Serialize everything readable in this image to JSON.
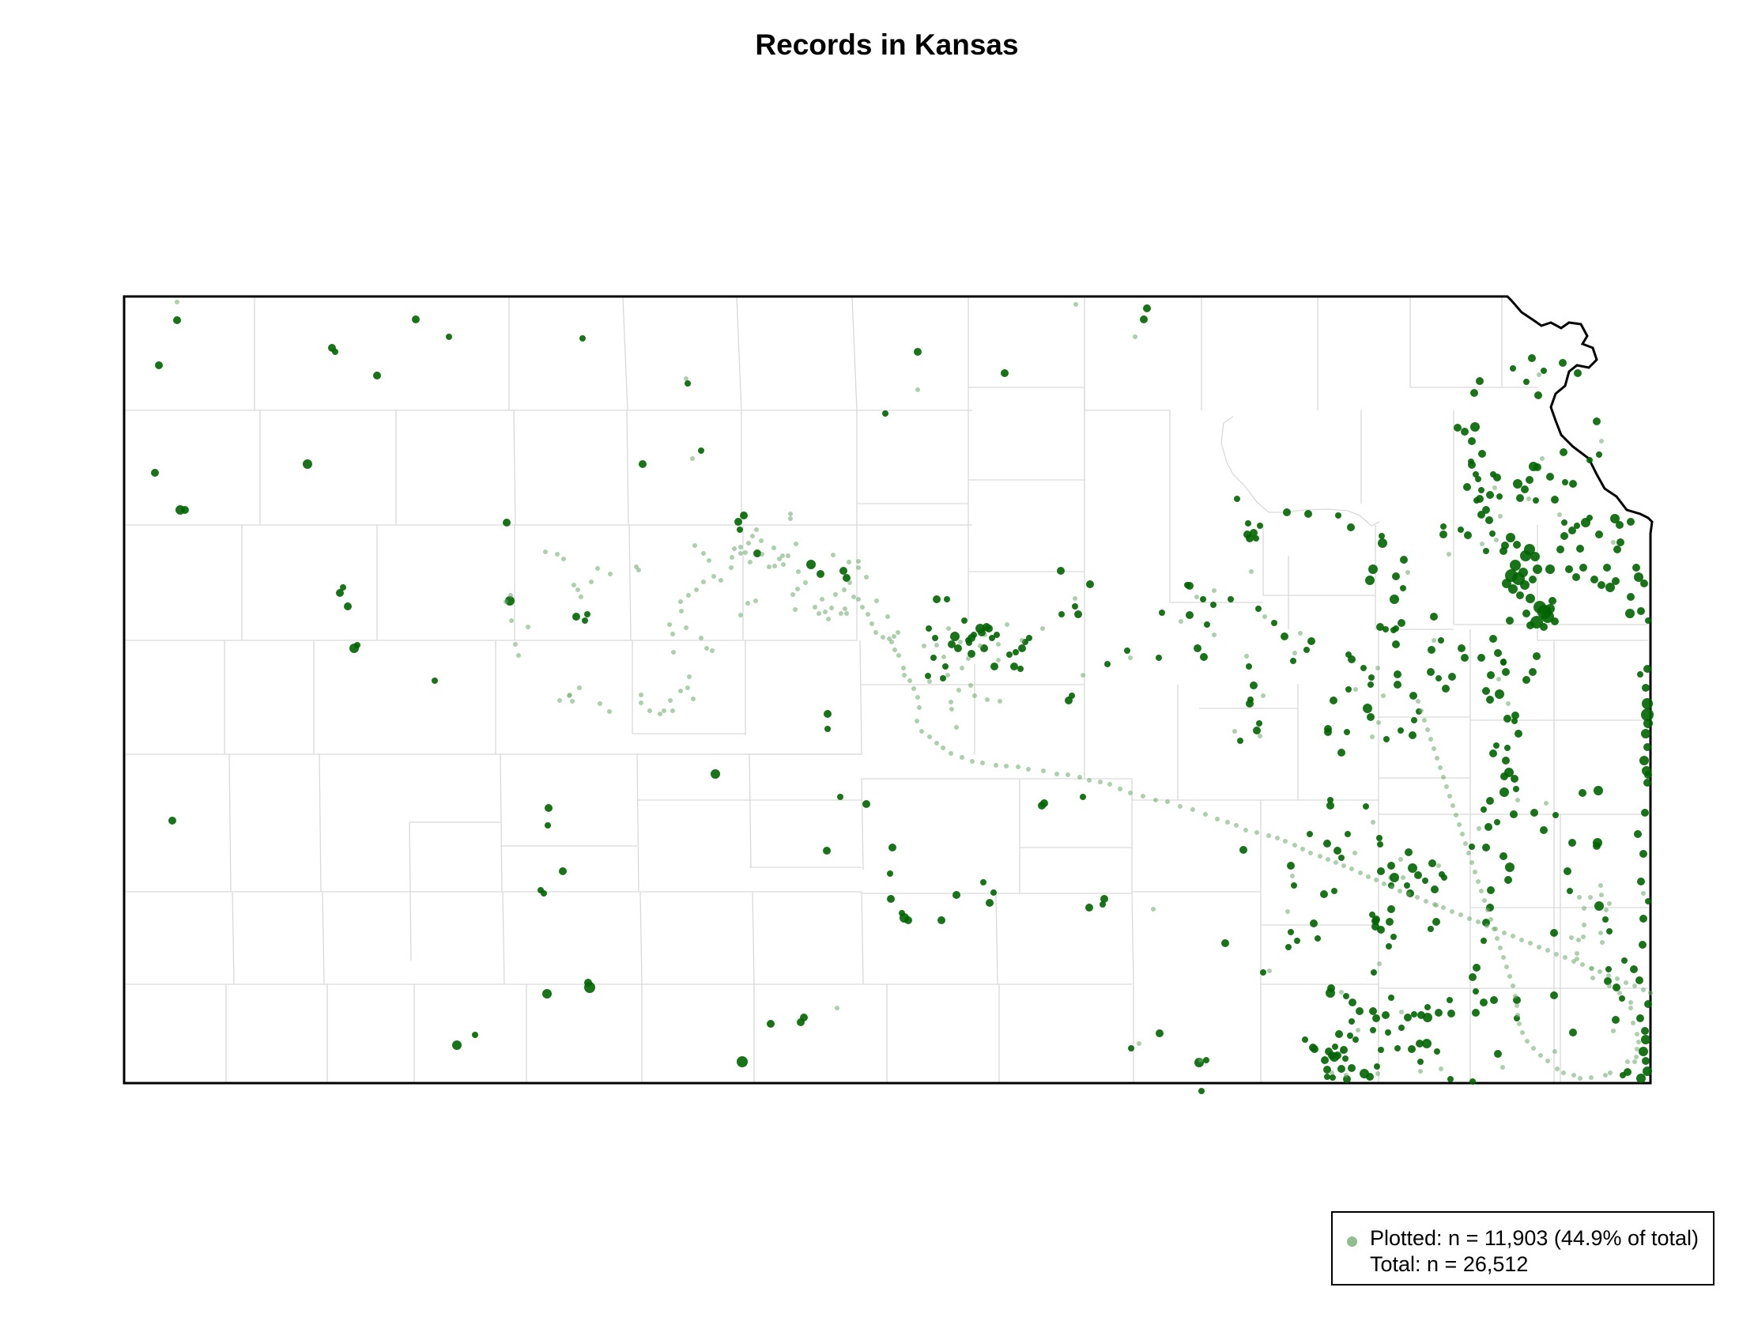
{
  "title": "Records in Kansas",
  "legend": {
    "plotted_label": "Plotted: n = 11,903 (44.9% of total)",
    "total_label": "Total: n = 26,512"
  },
  "colors": {
    "point": "#006400",
    "point_light": "#6aa86a",
    "legend_symbol": "#8fbf8f",
    "county_line": "#d9d9d9",
    "state_outline": "#000000"
  }
}
